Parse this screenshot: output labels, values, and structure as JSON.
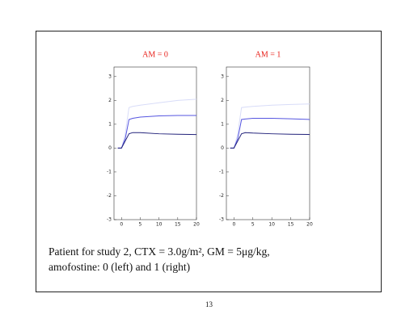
{
  "chart_data": [
    {
      "type": "line",
      "title": "AM = 0",
      "x": [
        -1,
        0,
        1,
        2,
        3,
        5,
        10,
        15,
        20
      ],
      "series": [
        {
          "color": "#d8dcf8",
          "values": [
            0,
            0,
            0.6,
            1.7,
            1.75,
            1.8,
            1.9,
            2.0,
            2.05
          ]
        },
        {
          "color": "#5555e0",
          "values": [
            0,
            0,
            0.4,
            1.2,
            1.25,
            1.3,
            1.35,
            1.37,
            1.37
          ]
        },
        {
          "color": "#22227a",
          "values": [
            0,
            0,
            0.3,
            0.6,
            0.65,
            0.65,
            0.6,
            0.58,
            0.57
          ]
        }
      ],
      "xlim": [
        -2,
        20
      ],
      "xticks": [
        0,
        5,
        10,
        15,
        20
      ],
      "ylim": [
        -3,
        3.4
      ],
      "yticks": [
        -3,
        -2,
        -1,
        0,
        1,
        2,
        3
      ]
    },
    {
      "type": "line",
      "title": "AM = 1",
      "x": [
        -1,
        0,
        1,
        2,
        3,
        5,
        10,
        15,
        20
      ],
      "series": [
        {
          "color": "#d8dcf8",
          "values": [
            0,
            0,
            0.6,
            1.7,
            1.72,
            1.75,
            1.8,
            1.83,
            1.85
          ]
        },
        {
          "color": "#5555e0",
          "values": [
            0,
            0,
            0.4,
            1.2,
            1.22,
            1.25,
            1.25,
            1.23,
            1.2
          ]
        },
        {
          "color": "#22227a",
          "values": [
            0,
            0,
            0.3,
            0.6,
            0.65,
            0.63,
            0.6,
            0.58,
            0.57
          ]
        }
      ],
      "xlim": [
        -2,
        20
      ],
      "xticks": [
        0,
        5,
        10,
        15,
        20
      ],
      "ylim": [
        -3,
        3.4
      ],
      "yticks": [
        -3,
        -2,
        -1,
        0,
        1,
        2,
        3
      ]
    }
  ],
  "caption": [
    "Patient for study 2, CTX = 3.0g/m², GM = 5μg/kg,",
    "amofostine: 0 (left) and 1 (right)"
  ],
  "page_number": "13"
}
